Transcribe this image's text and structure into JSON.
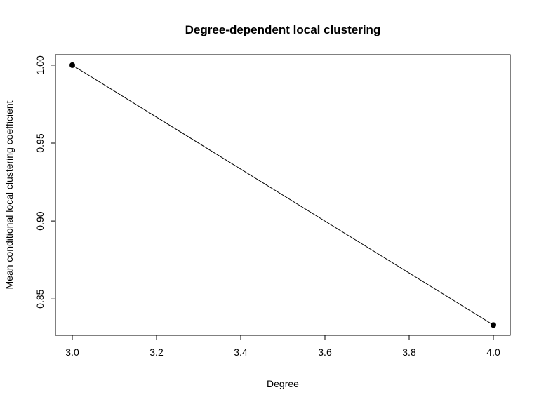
{
  "chart_data": {
    "type": "line",
    "title": "Degree-dependent local clustering",
    "xlabel": "Degree",
    "ylabel": "Mean conditional local clustering coefficient",
    "x": [
      3.0,
      4.0
    ],
    "series": [
      {
        "values": [
          1.0,
          0.8333
        ]
      }
    ],
    "xlim": [
      2.96,
      4.04
    ],
    "ylim": [
      0.8267,
      1.0067
    ],
    "xticks": [
      3.0,
      3.2,
      3.4,
      3.6,
      3.8,
      4.0
    ],
    "xtick_labels": [
      "3.0",
      "3.2",
      "3.4",
      "3.6",
      "3.8",
      "4.0"
    ],
    "yticks": [
      0.85,
      0.9,
      0.95,
      1.0
    ],
    "ytick_labels": [
      "0.85",
      "0.90",
      "0.95",
      "1.00"
    ],
    "grid": false,
    "legend": "none",
    "markers": "filled-circle",
    "line_color": "#000000",
    "marker_color": "#000000"
  }
}
